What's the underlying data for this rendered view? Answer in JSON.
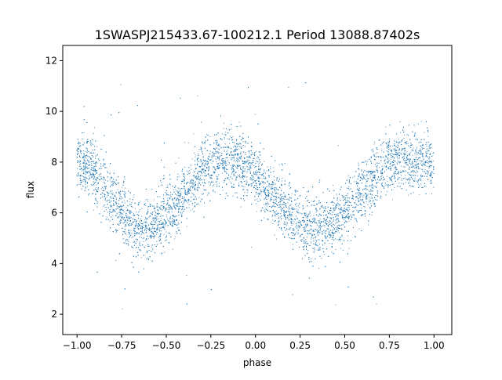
{
  "chart_data": {
    "type": "scatter",
    "title": "1SWASPJ215433.67-100212.1 Period 13088.87402s",
    "xlabel": "phase",
    "ylabel": "flux",
    "xlim": [
      -1.08,
      1.1
    ],
    "ylim": [
      1.2,
      12.6
    ],
    "xticks": [
      -1.0,
      -0.75,
      -0.5,
      -0.25,
      0.0,
      0.25,
      0.5,
      0.75,
      1.0
    ],
    "xtick_labels": [
      "−1.00",
      "−0.75",
      "−0.50",
      "−0.25",
      "0.00",
      "0.25",
      "0.50",
      "0.75",
      "1.00"
    ],
    "yticks": [
      2,
      4,
      6,
      8,
      10,
      12
    ],
    "ytick_labels": [
      "2",
      "4",
      "6",
      "8",
      "10",
      "12"
    ],
    "grid": false,
    "legend": "none",
    "point_color": "#1f77b4",
    "curve_model": {
      "description_of_trend": "sinusoid-like variation with two cycles over phase -1 to 1",
      "maxima": [
        {
          "x": -1.0,
          "y": 8.0
        },
        {
          "x": -0.17,
          "y": 8.1
        },
        {
          "x": 0.83,
          "y": 8.1
        },
        {
          "x": 1.0,
          "y": 8.0
        }
      ],
      "minima": [
        {
          "x": -0.63,
          "y": 5.4
        },
        {
          "x": 0.35,
          "y": 5.4
        }
      ],
      "scatter_spread": 0.6,
      "outlier_range": [
        1.7,
        11.2
      ]
    }
  }
}
